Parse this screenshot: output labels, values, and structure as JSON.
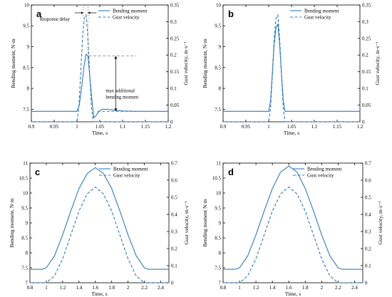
{
  "colors": {
    "series": "#2f7bbf",
    "axis": "#000000",
    "annotation": "#666666"
  },
  "chart_data": [
    {
      "type": "line",
      "panel_label": "a",
      "xlabel": "Time, s",
      "ylabel_left": "Bending  moment,  N·m",
      "ylabel_right": "Gust velocity,  m·s⁻¹",
      "xlim": [
        0.9,
        1.2
      ],
      "ylim_left": [
        7.2,
        10
      ],
      "ylim_right": [
        0,
        0.35
      ],
      "xticks": [
        "0.9",
        "0.95",
        "1",
        "1.05",
        "1.1",
        "1.15",
        "1.2"
      ],
      "yticks_left": [
        "7.5",
        "8",
        "8.5",
        "9",
        "9.5",
        "10"
      ],
      "yticks_right": [
        "0",
        "0.05",
        "0.1",
        "0.15",
        "0.2",
        "0.25",
        "0.3",
        "0.35"
      ],
      "legend_position": "top-right",
      "annotations": {
        "response_delay": "Response delay",
        "max_additional_1": "max additional",
        "max_additional_2": "bending moment"
      },
      "series": [
        {
          "name": "Bending moment",
          "style": "solid",
          "axis": "left",
          "x": [
            0.9,
            1.0,
            1.005,
            1.01,
            1.015,
            1.02,
            1.024,
            1.028,
            1.032,
            1.037,
            1.042,
            1.048,
            1.055,
            1.065,
            1.08,
            1.1,
            1.13,
            1.2
          ],
          "y": [
            7.45,
            7.45,
            7.6,
            8.0,
            8.5,
            8.82,
            8.78,
            8.3,
            7.8,
            7.3,
            7.35,
            7.45,
            7.5,
            7.5,
            7.48,
            7.46,
            7.45,
            7.45
          ]
        },
        {
          "name": "Gust velocity",
          "style": "dashed",
          "axis": "right",
          "x": [
            0.9,
            1.0,
            1.004,
            1.008,
            1.012,
            1.016,
            1.02,
            1.024,
            1.028,
            1.032,
            1.036,
            1.2
          ],
          "y": [
            0.0,
            0.0,
            0.04,
            0.14,
            0.25,
            0.31,
            0.32,
            0.25,
            0.14,
            0.04,
            0.0,
            0.0
          ]
        }
      ]
    },
    {
      "type": "line",
      "panel_label": "b",
      "xlabel": "Time, s",
      "ylabel_left": "Bending  moment,  N·m",
      "ylabel_right": "Gust velocity,  m·s⁻¹",
      "xlim": [
        0.9,
        1.2
      ],
      "ylim_left": [
        7.2,
        10
      ],
      "ylim_right": [
        0,
        0.35
      ],
      "xticks": [
        "0.9",
        "0.95",
        "1",
        "1.05",
        "1.1",
        "1.15",
        "1.2"
      ],
      "yticks_left": [
        "7.5",
        "8",
        "8.5",
        "9",
        "9.5",
        "10"
      ],
      "yticks_right": [
        "0",
        "0.05",
        "0.1",
        "0.15",
        "0.2",
        "0.25",
        "0.3",
        "0.35"
      ],
      "legend_position": "top-right",
      "series": [
        {
          "name": "Bending moment",
          "style": "solid",
          "axis": "left",
          "x": [
            0.9,
            1.0,
            1.004,
            1.008,
            1.012,
            1.016,
            1.02,
            1.024,
            1.028,
            1.032,
            1.036,
            1.2
          ],
          "y": [
            7.45,
            7.45,
            7.7,
            8.35,
            9.05,
            9.45,
            9.55,
            9.05,
            8.35,
            7.7,
            7.45,
            7.45
          ]
        },
        {
          "name": "Gust velocity",
          "style": "dashed",
          "axis": "right",
          "x": [
            0.9,
            1.0,
            1.004,
            1.008,
            1.012,
            1.016,
            1.02,
            1.024,
            1.028,
            1.032,
            1.036,
            1.2
          ],
          "y": [
            0.0,
            0.0,
            0.04,
            0.14,
            0.25,
            0.31,
            0.32,
            0.25,
            0.14,
            0.04,
            0.0,
            0.0
          ]
        }
      ]
    },
    {
      "type": "line",
      "panel_label": "c",
      "xlabel": "Time, s",
      "ylabel_left": "Bending  moment,  N·m",
      "ylabel_right": "Gust velocity,  m·s⁻¹",
      "xlim": [
        0.8,
        2.5
      ],
      "ylim_left": [
        7,
        11
      ],
      "ylim_right": [
        0,
        0.7
      ],
      "xticks": [
        "0.8",
        "1",
        "1.2",
        "1.4",
        "1.6",
        "1.8",
        "2",
        "2.2",
        "2.4"
      ],
      "yticks_left": [
        "7",
        "7.5",
        "8",
        "8.5",
        "9",
        "9.5",
        "10",
        "10.5",
        "11"
      ],
      "yticks_right": [
        "0",
        "0.1",
        "0.2",
        "0.3",
        "0.4",
        "0.5",
        "0.6",
        "0.7"
      ],
      "legend_position": "top-right",
      "series": [
        {
          "name": "Bending moment",
          "style": "solid",
          "axis": "left",
          "x": [
            0.8,
            0.95,
            1.0,
            1.1,
            1.2,
            1.3,
            1.4,
            1.5,
            1.6,
            1.7,
            1.8,
            1.9,
            2.0,
            2.1,
            2.2,
            2.25,
            2.5
          ],
          "y": [
            7.45,
            7.45,
            7.5,
            7.9,
            8.6,
            9.4,
            10.15,
            10.65,
            10.85,
            10.65,
            10.15,
            9.4,
            8.6,
            7.9,
            7.5,
            7.45,
            7.45
          ]
        },
        {
          "name": "Gust velocity",
          "style": "dashed",
          "axis": "right",
          "x": [
            0.8,
            1.0,
            1.1,
            1.2,
            1.3,
            1.4,
            1.5,
            1.6,
            1.7,
            1.8,
            1.9,
            2.0,
            2.1,
            2.2,
            2.5
          ],
          "y": [
            0.0,
            0.0,
            0.04,
            0.14,
            0.28,
            0.42,
            0.52,
            0.56,
            0.52,
            0.42,
            0.28,
            0.14,
            0.04,
            0.0,
            0.0
          ]
        }
      ]
    },
    {
      "type": "line",
      "panel_label": "d",
      "xlabel": "Time, s",
      "ylabel_left": "Bending  moment  N·m",
      "ylabel_right": "Gust velocity, m·s⁻¹",
      "xlim": [
        0.8,
        2.5
      ],
      "ylim_left": [
        7,
        11
      ],
      "ylim_right": [
        0,
        0.7
      ],
      "xticks": [
        "0.8",
        "1",
        "1.2",
        "1.4",
        "1.6",
        "1.8",
        "2",
        "2.2",
        "2.4"
      ],
      "yticks_left": [
        "7",
        "7.5",
        "8",
        "8.5",
        "9",
        "9.5",
        "10",
        "10.5",
        "11"
      ],
      "yticks_right": [
        "0",
        "0.1",
        "0.2",
        "0.3",
        "0.4",
        "0.5",
        "0.6",
        "0.7"
      ],
      "legend_position": "top-right",
      "series": [
        {
          "name": "Bending moment",
          "style": "solid",
          "axis": "left",
          "x": [
            0.8,
            0.95,
            1.0,
            1.1,
            1.2,
            1.3,
            1.4,
            1.5,
            1.6,
            1.7,
            1.8,
            1.9,
            2.0,
            2.1,
            2.2,
            2.25,
            2.5
          ],
          "y": [
            7.45,
            7.45,
            7.5,
            7.9,
            8.6,
            9.4,
            10.15,
            10.7,
            10.9,
            10.7,
            10.15,
            9.4,
            8.6,
            7.9,
            7.5,
            7.45,
            7.45
          ]
        },
        {
          "name": "Gust velocity",
          "style": "dashed",
          "axis": "right",
          "x": [
            0.8,
            1.0,
            1.1,
            1.2,
            1.3,
            1.4,
            1.5,
            1.6,
            1.7,
            1.8,
            1.9,
            2.0,
            2.1,
            2.2,
            2.5
          ],
          "y": [
            0.0,
            0.0,
            0.04,
            0.14,
            0.28,
            0.42,
            0.52,
            0.56,
            0.52,
            0.42,
            0.28,
            0.14,
            0.04,
            0.0,
            0.0
          ]
        }
      ]
    }
  ]
}
